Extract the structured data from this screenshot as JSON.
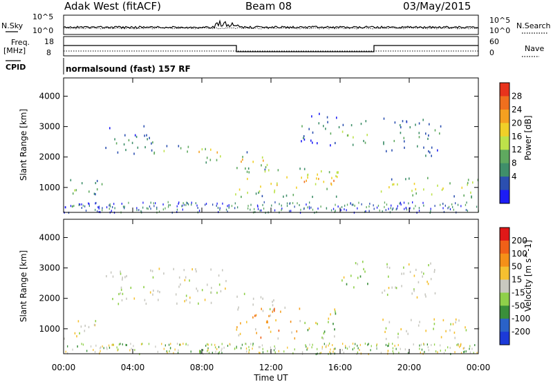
{
  "header": {
    "radar": "Adak West (fitACF)",
    "beam": "Beam 08",
    "date": "03/May/2015"
  },
  "top_panels": {
    "nsky_label": "N.Sky",
    "nsearch_label": "N.Search",
    "freq_label_1": "Freq.",
    "freq_label_2": "[MHz]",
    "nave_label": "Nave",
    "cpid_label": "CPID",
    "cpid_text": "normalsound (fast) 157 RF",
    "noise_ticks": [
      "10^5",
      "10^0"
    ],
    "freq_ticks": [
      "18",
      "8"
    ],
    "nave_ticks": [
      "60",
      "0"
    ]
  },
  "chart_data": [
    {
      "type": "heatmap",
      "name": "Power",
      "ylabel": "Slant Range [km]",
      "xlabel": "Time UT",
      "xlim": [
        0,
        24
      ],
      "ylim": [
        180,
        4600
      ],
      "xticks": [
        "00:00",
        "04:00",
        "08:00",
        "12:00",
        "16:00",
        "20:00",
        "00:00"
      ],
      "yticks": [
        1000,
        2000,
        3000,
        4000
      ],
      "colorbar": {
        "label": "Power [dB]",
        "ticks": [
          "4",
          "8",
          "12",
          "16",
          "20",
          "24",
          "28"
        ],
        "colors": [
          "#1c1cf5",
          "#2b4fb0",
          "#3f8f6a",
          "#5fa95f",
          "#bde24a",
          "#f0d028",
          "#f5a020",
          "#f06f1e",
          "#e8331c"
        ]
      },
      "regions": [
        {
          "t": [
            0.0,
            2.2
          ],
          "r": [
            700,
            1350
          ],
          "level": 0.45
        },
        {
          "t": [
            2.4,
            5.2
          ],
          "r": [
            2050,
            3050
          ],
          "level": 0.28
        },
        {
          "t": [
            5.2,
            7.6
          ],
          "r": [
            2050,
            2450
          ],
          "level": 0.45
        },
        {
          "t": [
            7.6,
            9.4
          ],
          "r": [
            1850,
            2500
          ],
          "level": 0.55
        },
        {
          "t": [
            9.7,
            12.2
          ],
          "r": [
            1600,
            2200
          ],
          "level": 0.6
        },
        {
          "t": [
            9.9,
            15.9
          ],
          "r": [
            700,
            1750
          ],
          "level": 0.65
        },
        {
          "t": [
            13.7,
            15.9
          ],
          "r": [
            2400,
            3550
          ],
          "level": 0.25
        },
        {
          "t": [
            15.9,
            17.6
          ],
          "r": [
            2300,
            3250
          ],
          "level": 0.45
        },
        {
          "t": [
            18.4,
            21.8
          ],
          "r": [
            2050,
            3350
          ],
          "level": 0.32
        },
        {
          "t": [
            18.3,
            24.0
          ],
          "r": [
            700,
            1350
          ],
          "level": 0.55
        }
      ]
    },
    {
      "type": "heatmap",
      "name": "Velocity",
      "ylabel": "Slant Range [km]",
      "xlabel": "Time UT",
      "xlim": [
        0,
        24
      ],
      "ylim": [
        180,
        4600
      ],
      "xticks": [
        "00:00",
        "04:00",
        "08:00",
        "12:00",
        "16:00",
        "20:00",
        "00:00"
      ],
      "yticks": [
        1000,
        2000,
        3000,
        4000
      ],
      "colorbar": {
        "label": "Velocity [m s^-1]",
        "ticks": [
          "200",
          "100",
          "50",
          "15",
          "-15",
          "-50",
          "-100",
          "-200"
        ],
        "colors": [
          "#1c3ad8",
          "#2a62c8",
          "#3a8f3a",
          "#8fd04a",
          "#c8c8c0",
          "#f5c030",
          "#f59018",
          "#f06018",
          "#e01818"
        ]
      },
      "regions": [
        {
          "t": [
            0.0,
            2.2
          ],
          "r": [
            700,
            1350
          ],
          "class": "gray"
        },
        {
          "t": [
            2.4,
            9.4
          ],
          "r": [
            1850,
            3050
          ],
          "class": "gray"
        },
        {
          "t": [
            9.7,
            12.2
          ],
          "r": [
            1600,
            2200
          ],
          "class": "gray"
        },
        {
          "t": [
            9.9,
            13.9
          ],
          "r": [
            700,
            1750
          ],
          "class": "orange"
        },
        {
          "t": [
            13.9,
            15.9
          ],
          "r": [
            700,
            1750
          ],
          "class": "green"
        },
        {
          "t": [
            15.9,
            17.6
          ],
          "r": [
            2300,
            3250
          ],
          "class": "green"
        },
        {
          "t": [
            18.4,
            21.8
          ],
          "r": [
            2050,
            3350
          ],
          "class": "gray"
        },
        {
          "t": [
            18.3,
            24.0
          ],
          "r": [
            700,
            1350
          ],
          "class": "gray"
        }
      ]
    }
  ]
}
